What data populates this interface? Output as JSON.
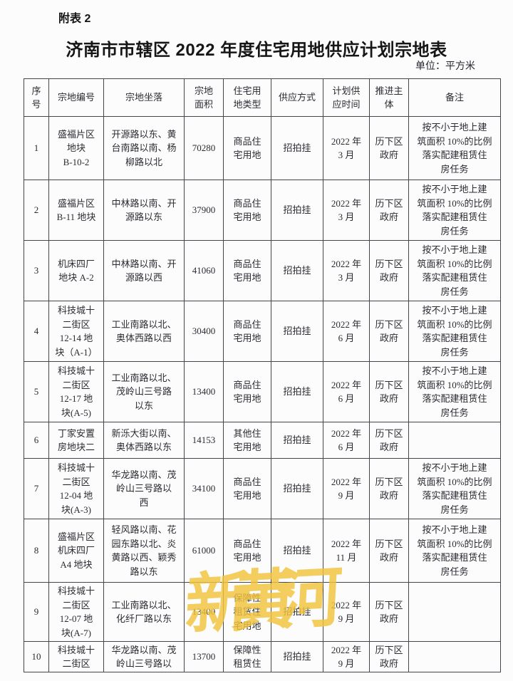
{
  "page": {
    "appendix_label": "附表 2",
    "title": "济南市市辖区 2022 年度住宅用地供应计划宗地表",
    "unit_label": "单位：平方米"
  },
  "table": {
    "columns": [
      {
        "key": "seq",
        "label": "序\n号"
      },
      {
        "key": "parcel_no",
        "label": "宗地编号"
      },
      {
        "key": "location",
        "label": "宗地坐落"
      },
      {
        "key": "area",
        "label": "宗地\n面积"
      },
      {
        "key": "land_type",
        "label": "住宅用\n地类型"
      },
      {
        "key": "supply_method",
        "label": "供应方式"
      },
      {
        "key": "planned_time",
        "label": "计划供\n应时间"
      },
      {
        "key": "promoter",
        "label": "推进主\n体"
      },
      {
        "key": "remark",
        "label": "备注"
      }
    ],
    "rows": [
      {
        "seq": "1",
        "parcel_no": "盛福片区\n地块\nB-10-2",
        "location": "开源路以东、黄\n台南路以南、杨\n柳路以北",
        "area": "70280",
        "land_type": "商品住\n宅用地",
        "supply_method": "招拍挂",
        "planned_time": "2022 年\n3 月",
        "promoter": "历下区\n政府",
        "remark": "按不小于地上建\n筑面积 10%的比例\n落实配建租赁住\n房任务"
      },
      {
        "seq": "2",
        "parcel_no": "盛福片区\nB-11 地块",
        "location": "中林路以南、开\n源路以东",
        "area": "37900",
        "land_type": "商品住\n宅用地",
        "supply_method": "招拍挂",
        "planned_time": "2022 年\n3 月",
        "promoter": "历下区\n政府",
        "remark": "按不小于地上建\n筑面积 10%的比例\n落实配建租赁住\n房任务"
      },
      {
        "seq": "3",
        "parcel_no": "机床四厂\n地块 A-2",
        "location": "中林路以南、开\n源路以西",
        "area": "41060",
        "land_type": "商品住\n宅用地",
        "supply_method": "招拍挂",
        "planned_time": "2022 年\n3 月",
        "promoter": "历下区\n政府",
        "remark": "按不小于地上建\n筑面积 10%的比例\n落实配建租赁住\n房任务"
      },
      {
        "seq": "4",
        "parcel_no": "科技城十\n二街区\n12-14 地\n块（A-1）",
        "location": "工业南路以北、\n奥体西路以西",
        "area": "30400",
        "land_type": "商品住\n宅用地",
        "supply_method": "招拍挂",
        "planned_time": "2022 年\n6 月",
        "promoter": "历下区\n政府",
        "remark": "按不小于地上建\n筑面积 10%的比例\n落实配建租赁住\n房任务"
      },
      {
        "seq": "5",
        "parcel_no": "科技城十\n二街区\n12-17 地\n块(A-5)",
        "location": "工业南路以北、\n茂岭山三号路\n以东",
        "area": "13400",
        "land_type": "商品住\n宅用地",
        "supply_method": "招拍挂",
        "planned_time": "2022 年\n6 月",
        "promoter": "历下区\n政府",
        "remark": "按不小于地上建\n筑面积 10%的比例\n落实配建租赁住\n房任务"
      },
      {
        "seq": "6",
        "parcel_no": "丁家安置\n房地块二",
        "location": "新泺大街以南、\n奥体西路以东",
        "area": "14153",
        "land_type": "其他住\n宅用地",
        "supply_method": "招拍挂",
        "planned_time": "2022 年\n6 月",
        "promoter": "历下区\n政府",
        "remark": ""
      },
      {
        "seq": "7",
        "parcel_no": "科技城十\n二街区\n12-04 地\n块(A-3)",
        "location": "华龙路以南、茂\n岭山三号路以\n西",
        "area": "34100",
        "land_type": "商品住\n宅用地",
        "supply_method": "招拍挂",
        "planned_time": "2022 年\n9 月",
        "promoter": "历下区\n政府",
        "remark": "按不小于地上建\n筑面积 10%的比例\n落实配建租赁住\n房任务"
      },
      {
        "seq": "8",
        "parcel_no": "盛福片区\n机床四厂\nA4 地块",
        "location": "轻风路以南、花\n园东路以北、炎\n黄路以西、颖秀\n路以东",
        "area": "61000",
        "land_type": "商品住\n宅用地",
        "supply_method": "招拍挂",
        "planned_time": "2022 年\n11 月",
        "promoter": "历下区\n政府",
        "remark": "按不小于地上建\n筑面积 10%的比例\n落实配建租赁住\n房任务"
      },
      {
        "seq": "9",
        "parcel_no": "科技城十\n二街区\n12-07 地\n块(A-7)",
        "location": "工业南路以北、\n化纤厂路以东",
        "area": "13400",
        "land_type": "保障性\n租赁住\n宅用地",
        "supply_method": "招拍挂",
        "planned_time": "2022 年\n9 月",
        "promoter": "历下区\n政府",
        "remark": ""
      },
      {
        "seq": "10",
        "parcel_no": "科技城十\n二街区",
        "location": "华龙路以南、茂\n岭山三号路以",
        "area": "13700",
        "land_type": "保障性\n租赁住",
        "supply_method": "招拍挂",
        "planned_time": "2022 年\n9 月",
        "promoter": "历下区\n政府",
        "remark": ""
      }
    ]
  },
  "watermark": {
    "text": "新黄河",
    "color": "#F2C43C"
  }
}
